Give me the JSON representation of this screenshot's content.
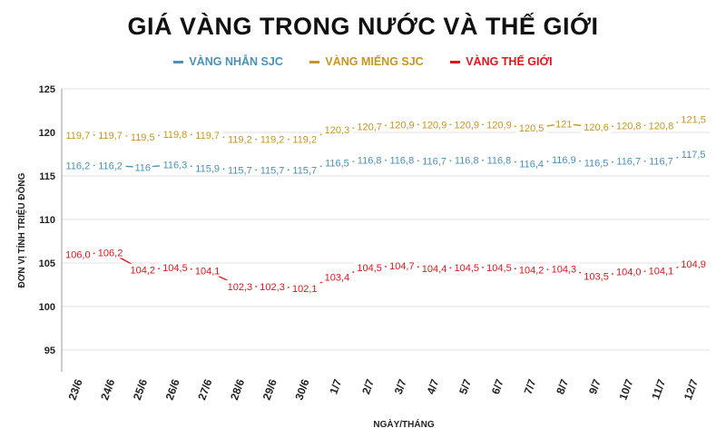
{
  "title": "GIÁ VÀNG TRONG NƯỚC VÀ THẾ GIỚI",
  "chart_data": {
    "type": "line",
    "title": "GIÁ VÀNG TRONG NƯỚC VÀ THẾ GIỚI",
    "xlabel": "NGÀY/THÁNG",
    "ylabel": "ĐƠN VỊ TÍNH TRIỆU ĐỒNG",
    "ylim": [
      92.5,
      125
    ],
    "yticks": [
      95,
      100,
      105,
      110,
      115,
      120,
      125
    ],
    "grid": true,
    "legend_position": "top-center",
    "categories": [
      "23/6",
      "24/6",
      "25/6",
      "26/6",
      "27/6",
      "28/6",
      "29/6",
      "30/6",
      "1/7",
      "2/7",
      "3/7",
      "4/7",
      "5/7",
      "6/7",
      "7/7",
      "8/7",
      "9/7",
      "10/7",
      "11/7",
      "12/7"
    ],
    "series": [
      {
        "name": "VÀNG NHẪN SJC",
        "color": "#4a90b8",
        "values": [
          116.2,
          116.2,
          116,
          116.3,
          115.9,
          115.7,
          115.7,
          115.7,
          116.5,
          116.8,
          116.8,
          116.7,
          116.8,
          116.8,
          116.4,
          116.9,
          116.5,
          116.7,
          116.7,
          117.5
        ],
        "labels": [
          "116,2",
          "116,2",
          "116",
          "116,3",
          "115,9",
          "115,7",
          "115,7",
          "115,7",
          "116,5",
          "116,8",
          "116,8",
          "116,7",
          "116,8",
          "116,8",
          "116,4",
          "116,9",
          "116,5",
          "116,7",
          "116,7",
          "117,5"
        ]
      },
      {
        "name": "VÀNG MIẾNG SJC",
        "color": "#c7961e",
        "values": [
          119.7,
          119.7,
          119.5,
          119.8,
          119.7,
          119.2,
          119.2,
          119.2,
          120.3,
          120.7,
          120.9,
          120.9,
          120.9,
          120.9,
          120.5,
          121,
          120.6,
          120.8,
          120.8,
          121.5
        ],
        "labels": [
          "119,7",
          "119,7",
          "119,5",
          "119,8",
          "119,7",
          "119,2",
          "119,2",
          "119,2",
          "120,3",
          "120,7",
          "120,9",
          "120,9",
          "120,9",
          "120,9",
          "120,5",
          "121",
          "120,6",
          "120,8",
          "120,8",
          "121,5"
        ]
      },
      {
        "name": "VÀNG THẾ GIỚI",
        "color": "#e3151b",
        "values": [
          106.0,
          106.2,
          104.2,
          104.5,
          104.1,
          102.3,
          102.3,
          102.1,
          103.4,
          104.5,
          104.7,
          104.4,
          104.5,
          104.5,
          104.2,
          104.3,
          103.5,
          104.0,
          104.1,
          104.9
        ],
        "labels": [
          "106,0",
          "106,2",
          "104,2",
          "104,5",
          "104,1",
          "102,3",
          "102,3",
          "102,1",
          "103,4",
          "104,5",
          "104,7",
          "104,4",
          "104,5",
          "104,5",
          "104,2",
          "104,3",
          "103,5",
          "104,0",
          "104,1",
          "104,9"
        ]
      }
    ]
  }
}
